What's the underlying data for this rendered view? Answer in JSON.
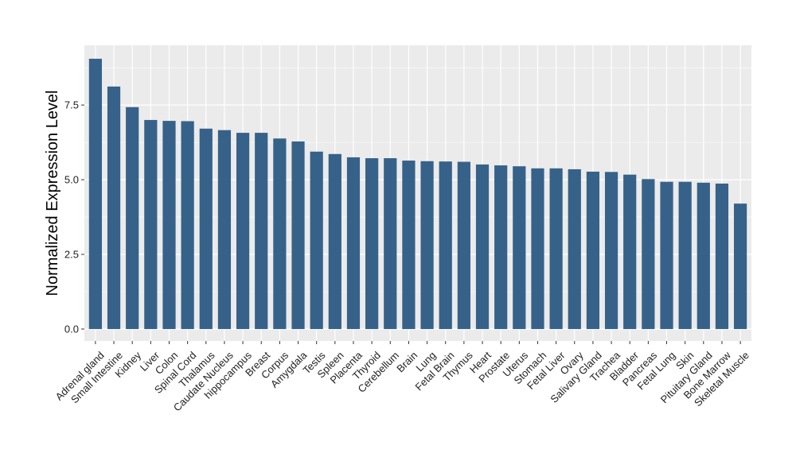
{
  "chart_data": {
    "type": "bar",
    "ylabel": "Normalized Expression Level",
    "xlabel": "",
    "ylim": [
      -0.4,
      9.5
    ],
    "yticks": [
      0.0,
      2.5,
      5.0,
      7.5
    ],
    "ytick_labels": [
      "0.0",
      "2.5",
      "5.0",
      "7.5"
    ],
    "grid": true,
    "colors": {
      "bar": "#36628a",
      "panel": "#ebebeb",
      "grid": "#ffffff"
    },
    "categories": [
      "Adrenal gland",
      "Small Intestine",
      "Kidney",
      "Liver",
      "Colon",
      "Spinal Cord",
      "Thalamus",
      "Caudate Nucleus",
      "hippocampus",
      "Breast",
      "Corpus",
      "Amygdala",
      "Testis",
      "Spleen",
      "Placenta",
      "Thyroid",
      "Cerebellum",
      "Brain",
      "Lung",
      "Fetal Brain",
      "Thymus",
      "Heart",
      "Prostate",
      "Uterus",
      "Stomach",
      "Fetal Liver",
      "Ovary",
      "Salivary Gland",
      "Trachea",
      "Bladder",
      "Pancreas",
      "Fetal Lung",
      "Skin",
      "Pituitary Gland",
      "Bone Marrow",
      "Skeletal Muscle"
    ],
    "values": [
      9.05,
      8.12,
      7.43,
      7.0,
      6.97,
      6.96,
      6.71,
      6.66,
      6.57,
      6.57,
      6.38,
      6.28,
      5.94,
      5.86,
      5.75,
      5.72,
      5.72,
      5.64,
      5.62,
      5.61,
      5.6,
      5.51,
      5.48,
      5.45,
      5.38,
      5.38,
      5.35,
      5.27,
      5.26,
      5.17,
      5.02,
      4.93,
      4.93,
      4.9,
      4.87,
      4.2
    ]
  }
}
